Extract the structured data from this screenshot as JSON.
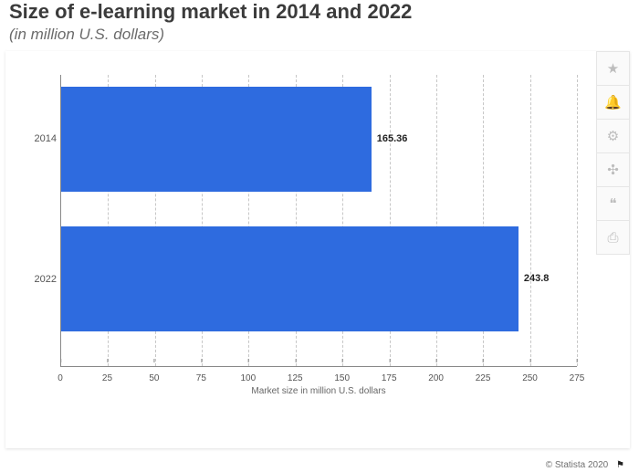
{
  "title": "Size of e-learning market in 2014 and 2022",
  "subtitle": "(in million U.S. dollars)",
  "chart": {
    "type": "bar-horizontal",
    "categories": [
      "2014",
      "2022"
    ],
    "values": [
      165.36,
      243.8
    ],
    "value_labels": [
      "165.36",
      "243.8"
    ],
    "bar_color": "#2e6bdf",
    "bar_height_pct": 36,
    "bar_top_pct": [
      4,
      52
    ],
    "xlabel": "Market size in million U.S. dollars",
    "xlim": [
      0,
      275
    ],
    "xtick_step": 25,
    "xticks": [
      0,
      25,
      50,
      75,
      100,
      125,
      150,
      175,
      200,
      225,
      250,
      275
    ],
    "background_color": "#ffffff",
    "grid_color": "rgba(0,0,0,0.22)",
    "axis_color": "#888888",
    "label_fontsize": 11,
    "tick_fontsize": 10
  },
  "sidebar_icons": {
    "favorite": "★",
    "notify": "🔔",
    "settings": "⚙",
    "share": "✣",
    "cite": "❝",
    "print": "⎙"
  },
  "copyright": "© Statista 2020",
  "flag_icon": "⚑"
}
